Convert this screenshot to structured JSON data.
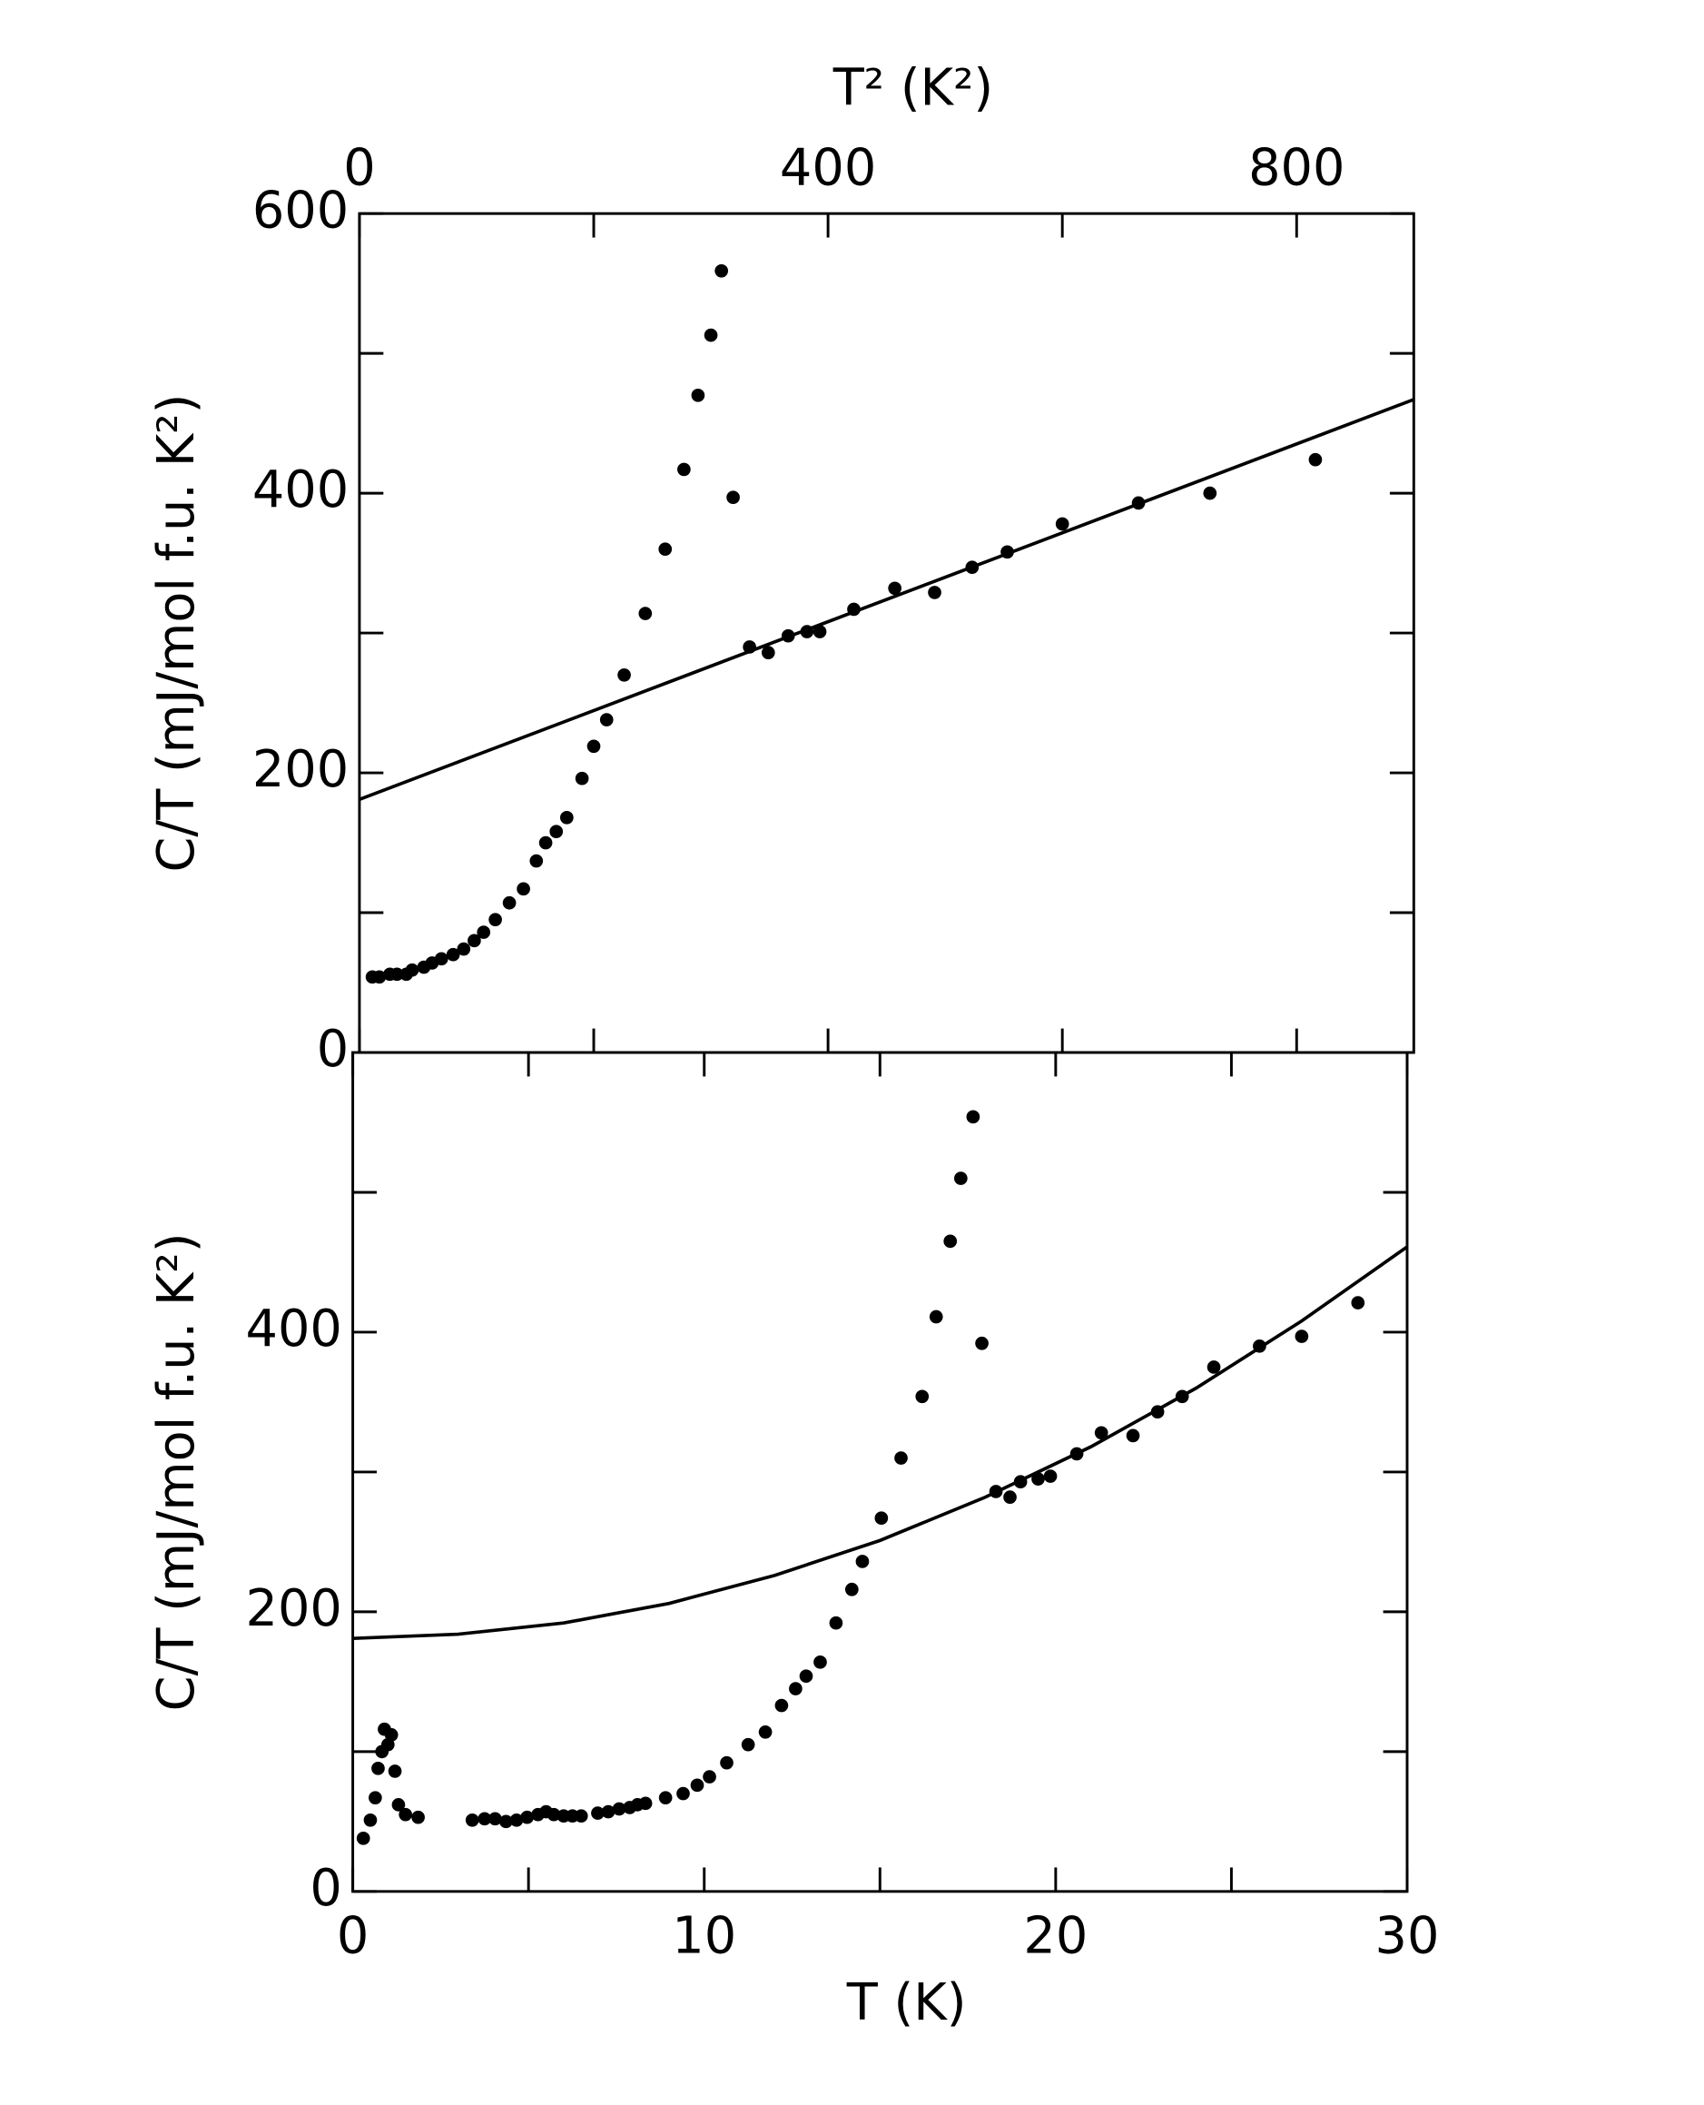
{
  "chart_data": [
    {
      "type": "scatter",
      "xlabel": "T² (K²)",
      "ylabel": "C/T (mJ/mol f.u. K²)",
      "xaxis_position": "top",
      "xlim": [
        0,
        900
      ],
      "ylim": [
        0,
        600
      ],
      "xticks": [
        0,
        400,
        800
      ],
      "xminorticks": [
        200,
        600
      ],
      "yticks": [
        0,
        200,
        400,
        600
      ],
      "yminorticks": [
        100,
        300,
        500
      ],
      "series": [
        {
          "style": "markers",
          "color": "#000000",
          "x": [
            11,
            17,
            26,
            32,
            40,
            45,
            55,
            62,
            70,
            80,
            89,
            98,
            106,
            116,
            128,
            140,
            151,
            159,
            168,
            177,
            190,
            200,
            211,
            226,
            244,
            261,
            277,
            289,
            300,
            309,
            319,
            333,
            349,
            366,
            382,
            393,
            422,
            457,
            491,
            523,
            553,
            600,
            665,
            726,
            816
          ],
          "values": [
            54,
            54,
            56,
            56,
            56,
            59,
            61,
            64,
            67,
            70,
            74,
            80,
            86,
            95,
            107,
            117,
            137,
            150,
            158,
            168,
            196,
            219,
            238,
            270,
            314,
            360,
            417,
            470,
            513,
            559,
            397,
            290,
            286,
            298,
            301,
            301,
            317,
            332,
            329,
            347,
            358,
            378,
            393,
            400,
            424
          ]
        },
        {
          "style": "line",
          "color": "#000000",
          "x": [
            0,
            900
          ],
          "values": [
            181,
            467
          ]
        }
      ]
    },
    {
      "type": "scatter",
      "xlabel": "T (K)",
      "ylabel": "C/T (mJ/mol f.u. K²)",
      "xaxis_position": "bottom",
      "xlim": [
        0,
        30
      ],
      "ylim": [
        0,
        600
      ],
      "xticks": [
        0,
        10,
        20,
        30
      ],
      "xminorticks": [
        5,
        15,
        25
      ],
      "yticks": [
        0,
        200,
        400
      ],
      "yminorticks": [
        100,
        300,
        500
      ],
      "series": [
        {
          "style": "markers",
          "color": "#000000",
          "x": [
            0.3,
            0.5,
            0.64,
            0.72,
            0.83,
            0.9,
            1.0,
            1.1,
            1.2,
            1.3,
            1.5,
            1.86,
            3.4,
            3.75,
            4.05,
            4.36,
            4.66,
            4.96,
            5.27,
            5.5,
            5.72,
            6.0,
            6.25,
            6.5,
            6.97,
            7.27,
            7.58,
            7.88,
            8.1,
            8.33,
            8.9,
            9.4,
            9.8,
            10.15,
            10.64,
            11.25,
            11.74,
            12.2,
            12.6,
            12.9,
            13.3,
            13.75,
            14.2,
            14.5,
            15.04,
            15.6,
            16.2,
            16.6,
            17.0,
            17.3,
            17.65,
            17.9,
            18.3,
            18.7,
            19.0,
            19.5,
            19.85,
            20.6,
            21.3,
            22.2,
            22.9,
            23.6,
            24.5,
            25.8,
            27.0,
            28.6
          ],
          "values": [
            38,
            51,
            67,
            88,
            100,
            116,
            105,
            112,
            86,
            62,
            55,
            53,
            51,
            52,
            52,
            50,
            51,
            53,
            55,
            57,
            55,
            54,
            54,
            54,
            56,
            57,
            59,
            60,
            62,
            63,
            67,
            70,
            76,
            82,
            92,
            105,
            114,
            133,
            145,
            154,
            164,
            192,
            216,
            236,
            267,
            310,
            354,
            411,
            465,
            510,
            554,
            392,
            286,
            282,
            293,
            295,
            297,
            313,
            328,
            326,
            343,
            354,
            375,
            390,
            397,
            421
          ]
        },
        {
          "style": "line",
          "color": "#000000",
          "x": [
            0,
            3,
            6,
            9,
            12,
            15,
            18,
            21,
            24,
            27,
            30
          ],
          "values": [
            181,
            184,
            192,
            206,
            226,
            251,
            282,
            318,
            360,
            408,
            461
          ]
        }
      ]
    }
  ]
}
